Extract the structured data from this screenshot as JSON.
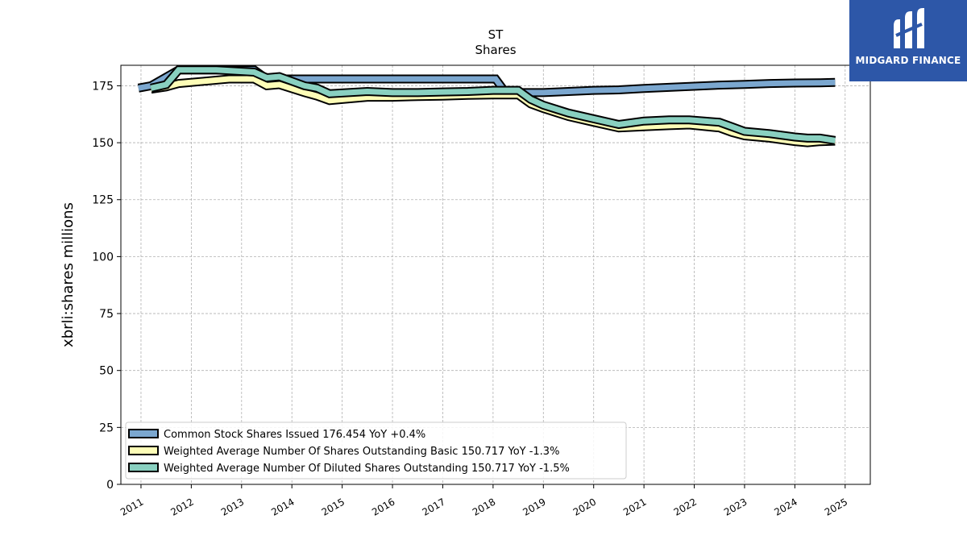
{
  "chart_data": {
    "type": "line",
    "title": "ST",
    "subtitle": "Shares",
    "ylabel": "xbrli:shares millions",
    "xlabel": "",
    "ylim": [
      0,
      184
    ],
    "xlim": [
      2010.6,
      2025.5
    ],
    "grid": true,
    "legend_position": "lower-left",
    "x_ticks": [
      "2011",
      "2012",
      "2013",
      "2014",
      "2015",
      "2016",
      "2017",
      "2018",
      "2019",
      "2020",
      "2021",
      "2022",
      "2023",
      "2024",
      "2025"
    ],
    "y_ticks": [
      "0",
      "25",
      "50",
      "75",
      "100",
      "125",
      "150",
      "175"
    ],
    "series": [
      {
        "name": "Common Stock Shares Issued",
        "legend": "Common Stock Shares Issued  176.454 YoY +0.4%",
        "color": "#7ba7cf",
        "points": [
          [
            2010.95,
            174
          ],
          [
            2011.2,
            175
          ],
          [
            2011.75,
            182
          ],
          [
            2012.5,
            182
          ],
          [
            2013.25,
            182
          ],
          [
            2013.5,
            178
          ],
          [
            2014.0,
            178
          ],
          [
            2015.0,
            178
          ],
          [
            2016.0,
            178
          ],
          [
            2017.0,
            178
          ],
          [
            2018.05,
            178
          ],
          [
            2018.25,
            172
          ],
          [
            2019.0,
            172
          ],
          [
            2019.5,
            172.5
          ],
          [
            2020.0,
            173
          ],
          [
            2020.5,
            173.2
          ],
          [
            2021.0,
            173.8
          ],
          [
            2021.5,
            174.3
          ],
          [
            2022.0,
            174.8
          ],
          [
            2022.5,
            175.3
          ],
          [
            2023.0,
            175.6
          ],
          [
            2023.5,
            176
          ],
          [
            2024.0,
            176.2
          ],
          [
            2024.5,
            176.3
          ],
          [
            2024.8,
            176.45
          ]
        ]
      },
      {
        "name": "Weighted Average Number Of Shares Outstanding Basic",
        "legend": "Weighted Average Number Of Shares Outstanding Basic  150.717 YoY -1.3%",
        "color": "#fdfdb7",
        "points": [
          [
            2011.2,
            173.5
          ],
          [
            2011.5,
            174.5
          ],
          [
            2011.75,
            176
          ],
          [
            2012.25,
            177
          ],
          [
            2012.75,
            178
          ],
          [
            2013.25,
            178
          ],
          [
            2013.5,
            175
          ],
          [
            2013.75,
            175.5
          ],
          [
            2014.25,
            172
          ],
          [
            2014.5,
            170.5
          ],
          [
            2014.75,
            168.5
          ],
          [
            2015.5,
            170
          ],
          [
            2016.0,
            170
          ],
          [
            2016.5,
            170.3
          ],
          [
            2017.0,
            170.5
          ],
          [
            2017.5,
            170.8
          ],
          [
            2018.0,
            171
          ],
          [
            2018.5,
            171
          ],
          [
            2018.75,
            167
          ],
          [
            2019.0,
            165
          ],
          [
            2019.5,
            161.5
          ],
          [
            2020.0,
            159
          ],
          [
            2020.5,
            156.5
          ],
          [
            2021.0,
            157
          ],
          [
            2021.5,
            157.5
          ],
          [
            2021.9,
            157.8
          ],
          [
            2022.5,
            156.5
          ],
          [
            2022.75,
            154.5
          ],
          [
            2023.0,
            153
          ],
          [
            2023.5,
            152
          ],
          [
            2024.0,
            150.5
          ],
          [
            2024.25,
            150
          ],
          [
            2024.5,
            150.5
          ],
          [
            2024.8,
            150.7
          ]
        ]
      },
      {
        "name": "Weighted Average Number Of Diluted Shares Outstanding",
        "legend": "Weighted Average Number Of Diluted Shares Outstanding  150.717 YoY -1.5%",
        "color": "#89d0c0",
        "points": [
          [
            2011.2,
            174
          ],
          [
            2011.5,
            175.5
          ],
          [
            2011.75,
            182
          ],
          [
            2012.5,
            182
          ],
          [
            2013.25,
            181
          ],
          [
            2013.5,
            178.5
          ],
          [
            2013.75,
            179
          ],
          [
            2014.25,
            175
          ],
          [
            2014.5,
            174
          ],
          [
            2014.75,
            171.5
          ],
          [
            2015.5,
            172.5
          ],
          [
            2016.0,
            172
          ],
          [
            2016.5,
            172
          ],
          [
            2017.0,
            172.3
          ],
          [
            2017.5,
            172.5
          ],
          [
            2018.0,
            173
          ],
          [
            2018.5,
            173
          ],
          [
            2018.75,
            169
          ],
          [
            2019.0,
            166.5
          ],
          [
            2019.5,
            163
          ],
          [
            2020.0,
            160.5
          ],
          [
            2020.5,
            158
          ],
          [
            2021.0,
            159.5
          ],
          [
            2021.5,
            160
          ],
          [
            2021.9,
            160
          ],
          [
            2022.5,
            159
          ],
          [
            2022.75,
            157
          ],
          [
            2023.0,
            155
          ],
          [
            2023.5,
            154
          ],
          [
            2024.0,
            152.5
          ],
          [
            2024.25,
            152
          ],
          [
            2024.5,
            152
          ],
          [
            2024.8,
            151
          ]
        ]
      }
    ]
  },
  "logo": {
    "text": "MIDGARD FINANCE"
  }
}
